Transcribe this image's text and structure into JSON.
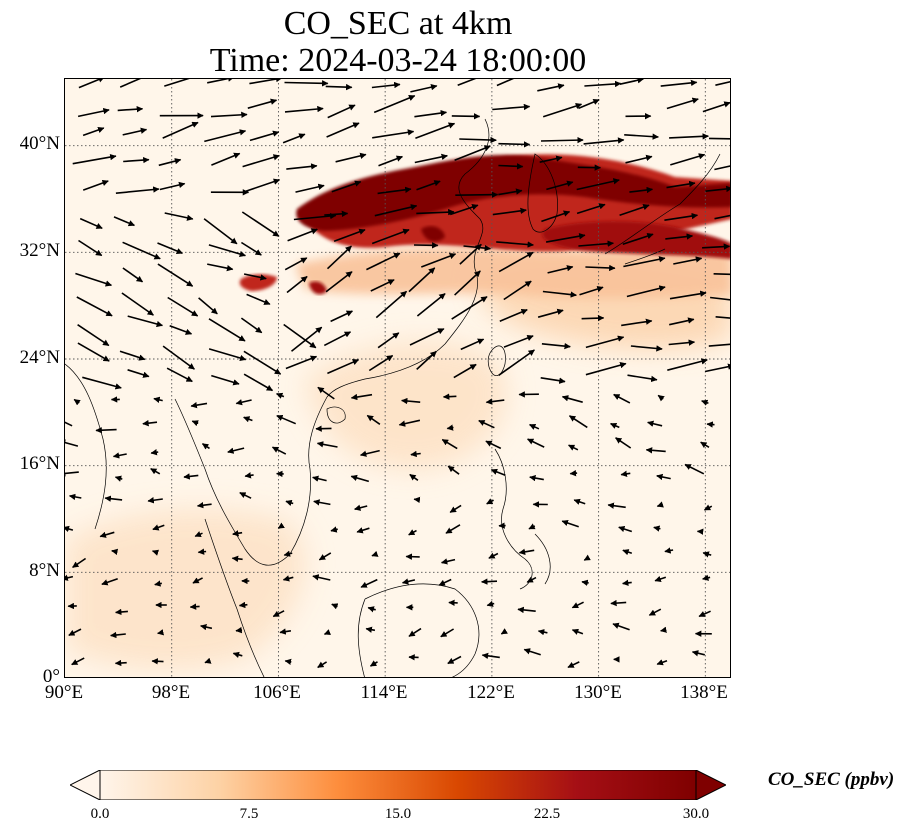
{
  "figure": {
    "title_line1": "CO_SEC at 4km",
    "title_line2": "Time: 2024-03-24 18:00:00"
  },
  "map": {
    "lon_range": [
      90,
      140
    ],
    "lat_range": [
      0,
      45
    ],
    "grid_style": "dotted gray",
    "y_ticks": [
      "40°N",
      "32°N",
      "24°N",
      "16°N",
      "8°N",
      "0°"
    ],
    "y_tick_values": [
      40,
      32,
      24,
      16,
      8,
      0
    ],
    "x_ticks": [
      "90°E",
      "98°E",
      "106°E",
      "114°E",
      "122°E",
      "130°E",
      "138°E"
    ],
    "x_tick_values": [
      90,
      98,
      106,
      114,
      122,
      130,
      138
    ]
  },
  "colorbar": {
    "label": "CO_SEC (ppbv)",
    "ticks": [
      "0.0",
      "7.5",
      "15.0",
      "22.5",
      "30.0"
    ],
    "tick_values": [
      0,
      7.5,
      15,
      22.5,
      30
    ],
    "range": [
      0,
      30
    ],
    "colormap": [
      "#fff5eb",
      "#fdd2a5",
      "#fd8d3c",
      "#d94801",
      "#a50f15",
      "#7f0000"
    ],
    "extend": "both"
  },
  "colors": {
    "high": "#7f0000",
    "mid": "#c0281e",
    "low": "#f7c8a4",
    "background": "#fff6ea",
    "arrow": "#000000"
  }
}
